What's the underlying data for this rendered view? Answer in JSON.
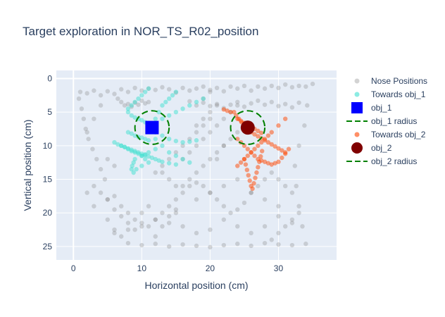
{
  "chart_data": {
    "type": "scatter",
    "title": "Target exploration in NOR_TS_R02_position",
    "xlabel": "Horizontal position (cm)",
    "ylabel": "Vertical position (cm)",
    "xlim": [
      -2.5,
      38.5
    ],
    "ylim": [
      27,
      -1.2
    ],
    "y_reversed": true,
    "x_ticks": [
      0,
      10,
      20,
      30
    ],
    "y_ticks": [
      0,
      5,
      10,
      15,
      20,
      25
    ],
    "grid": true,
    "legend_position": "right",
    "colors": {
      "plot_bg": "#e5ecf6",
      "grid": "#ffffff",
      "nose": "#808080",
      "towards_obj1": "#40e0d0",
      "towards_obj2": "#ff4500",
      "obj1": "#0000ff",
      "obj2": "#800000",
      "radius": "#008000"
    },
    "series": [
      {
        "name": "Nose Positions",
        "kind": "points",
        "color": "#808080",
        "x": [
          1,
          2,
          3,
          4,
          5,
          6,
          7,
          8,
          9,
          10,
          11,
          12,
          13,
          14,
          15,
          16,
          17,
          18,
          19,
          20,
          21,
          22,
          23,
          24,
          25,
          26,
          27,
          28,
          29,
          30,
          31,
          32,
          33,
          34,
          35,
          0.8,
          1.2,
          1.5,
          1.8,
          2.2,
          2.8,
          3.4,
          4,
          4.6,
          2,
          3,
          5,
          6,
          7,
          8,
          10,
          12,
          14,
          16,
          18,
          20,
          22,
          24,
          26,
          28,
          30,
          32,
          34,
          33.5,
          33,
          32.6,
          32.4,
          33,
          33.8,
          34.2,
          3,
          4,
          5,
          6,
          7,
          8,
          9,
          10,
          11,
          12,
          13,
          14,
          15,
          16,
          17,
          18,
          19,
          20,
          21,
          22,
          23,
          24,
          25,
          26,
          27,
          28,
          29,
          30,
          31,
          32,
          6.5,
          7,
          7.5,
          8,
          8.5,
          9,
          9.5,
          10,
          10.5,
          11,
          17,
          18,
          19,
          20,
          21,
          22,
          23,
          24,
          25,
          26,
          27,
          28,
          29,
          30,
          31,
          32,
          33,
          6,
          8,
          10,
          12,
          14,
          16,
          18,
          20,
          22,
          24,
          26,
          28,
          30,
          32,
          5,
          6,
          7,
          8,
          9,
          10,
          11,
          12,
          13,
          14,
          15,
          18,
          20,
          22,
          24,
          26,
          28,
          30,
          15,
          16,
          17,
          18,
          19,
          20,
          21,
          22,
          23,
          24,
          18,
          19,
          20,
          21,
          19,
          20,
          21,
          22,
          2,
          3,
          4,
          5,
          6,
          13,
          14,
          15,
          16,
          17,
          18,
          19,
          20,
          21,
          22,
          23,
          24,
          12,
          13,
          14,
          15,
          16,
          17,
          18,
          19,
          20,
          29,
          30,
          31,
          32,
          33
        ],
        "y": [
          2,
          2.2,
          1.8,
          2.5,
          1.9,
          2.3,
          1.6,
          2,
          1.4,
          1.8,
          1.5,
          1.7,
          1.3,
          1.6,
          2.1,
          1.4,
          1.8,
          1.5,
          1.2,
          1.7,
          1.4,
          1.9,
          1.2,
          1.5,
          1.1,
          1.8,
          1.2,
          1.5,
          1.1,
          1.4,
          0.9,
          1.3,
          1.1,
          1.2,
          0.8,
          3,
          4.5,
          6,
          7.5,
          9,
          10.5,
          12,
          13.5,
          15,
          17,
          19,
          21,
          22.5,
          23.5,
          24.5,
          24.8,
          24.6,
          25,
          24.7,
          24.9,
          25.1,
          24.8,
          24.6,
          24.9,
          24.5,
          24.7,
          24.8,
          24.6,
          22,
          19,
          16,
          13,
          10,
          7,
          4,
          16,
          17,
          18,
          17.5,
          19,
          20,
          21,
          21.5,
          22,
          21,
          20,
          19,
          18,
          17,
          16,
          15.5,
          16,
          17,
          18,
          19,
          20,
          19.5,
          18.5,
          17,
          16,
          15,
          14,
          15,
          16,
          17,
          3,
          3.5,
          4,
          3.8,
          4.2,
          3.6,
          3.9,
          3.3,
          3.7,
          3.5,
          3.4,
          4,
          3.6,
          4.1,
          3.8,
          4.4,
          3.9,
          3.5,
          4.2,
          3.7,
          3.3,
          3.9,
          3.5,
          4.1,
          3.8,
          4.3,
          3.6,
          23,
          22.5,
          22,
          23.5,
          21.5,
          22,
          23,
          22.5,
          21,
          22,
          23,
          22,
          20.5,
          21.5,
          18,
          19.5,
          20.5,
          21.5,
          22.5,
          20,
          19,
          21,
          22,
          20.5,
          19.5,
          18,
          17,
          16,
          15,
          17,
          18,
          19,
          20,
          16,
          15,
          14,
          13,
          12,
          11,
          10,
          9,
          8,
          7,
          6,
          5,
          4,
          3,
          2,
          12,
          10,
          8,
          6,
          4,
          12,
          13,
          14,
          15,
          16,
          12,
          11,
          10,
          9,
          8,
          7,
          6,
          5,
          4,
          14,
          13,
          12,
          11,
          10,
          9,
          8,
          7,
          6,
          24,
          23,
          22,
          21,
          20
        ]
      },
      {
        "name": "Towards obj_1",
        "kind": "points",
        "color": "#40e0d0",
        "x": [
          8,
          8.5,
          9,
          9.5,
          10,
          10.5,
          11,
          12,
          12.5,
          13,
          13.5,
          14,
          14.5,
          15,
          8,
          8.5,
          9,
          9.5,
          10,
          10.5,
          11,
          12,
          13,
          14,
          15,
          16,
          17,
          18,
          7,
          7.5,
          8,
          8.5,
          9,
          9.5,
          10,
          10.5,
          11,
          12,
          6,
          6.5,
          7,
          7.5,
          8,
          8.5,
          9,
          9.5,
          10,
          10.5,
          11,
          11.5,
          12,
          12.5,
          13,
          14,
          15,
          9,
          8.8,
          8.6,
          8.5,
          8.8,
          9.2,
          10,
          11,
          10.5,
          10,
          13,
          14,
          15,
          16,
          17,
          18,
          19,
          11,
          10.5,
          10,
          9.5,
          9,
          8.5,
          8,
          12,
          13,
          14,
          15,
          16,
          17
        ],
        "y": [
          5,
          5.5,
          5.8,
          6,
          6.2,
          6.5,
          6.8,
          6,
          5,
          4,
          3.5,
          3,
          2.5,
          2,
          8,
          8.2,
          8.5,
          8.7,
          8.8,
          9,
          9.2,
          8,
          8.5,
          9,
          9.3,
          9.5,
          9.4,
          9.2,
          10,
          10.2,
          10.5,
          10.8,
          11,
          11.2,
          11.5,
          11.3,
          11,
          10.5,
          9.5,
          9.8,
          10,
          10.2,
          10.4,
          10.6,
          10.8,
          11,
          11.2,
          11.4,
          11.6,
          11.8,
          12,
          12.2,
          12.4,
          12.6,
          12.8,
          12,
          12.5,
          13,
          13.5,
          14,
          13.5,
          13,
          12.5,
          12,
          11.5,
          6,
          5.5,
          5,
          4.5,
          4,
          3.5,
          3,
          1.5,
          2,
          2.5,
          3,
          3.5,
          4,
          4.5,
          9,
          10,
          11,
          11.5,
          12,
          12.5
        ]
      },
      {
        "name": "Towards obj_2",
        "kind": "points",
        "color": "#ff4500",
        "x": [
          24,
          24.5,
          25,
          25.5,
          26,
          26.5,
          27,
          27.5,
          28,
          28.5,
          29,
          29.5,
          30,
          30.5,
          31,
          31.5,
          26,
          26.5,
          27,
          27.5,
          28,
          28.5,
          29,
          29.5,
          30,
          30.5,
          31,
          25,
          25.2,
          25.4,
          25.6,
          25.8,
          26,
          26.2,
          26.4,
          26.6,
          26.8,
          27,
          27.2,
          27.4,
          27.6,
          24,
          24.5,
          25,
          25.5,
          26,
          26.5,
          27,
          27.5,
          23.5,
          23.8,
          24.2,
          24.6,
          25,
          31,
          30,
          29,
          28.5,
          28,
          27.5,
          27,
          26.5,
          26,
          25.5,
          25,
          24.5,
          24,
          23,
          22.5,
          22
        ],
        "y": [
          9,
          9.5,
          10,
          10.5,
          11,
          11.5,
          12,
          12.2,
          12.4,
          12.6,
          12.8,
          12.6,
          12.4,
          11.8,
          11.2,
          10.5,
          8,
          8.3,
          8.6,
          8.9,
          9.2,
          9.5,
          9.8,
          10.1,
          10.4,
          10.7,
          11,
          12,
          12.8,
          13.6,
          14.4,
          15.2,
          16,
          16.4,
          15.6,
          14.8,
          14,
          13.2,
          12.4,
          11.6,
          10.8,
          6,
          6.3,
          6.6,
          6.9,
          7.2,
          7.5,
          7.8,
          8.1,
          5,
          5.5,
          6,
          6.5,
          7,
          6,
          7,
          8,
          8.5,
          9,
          9.5,
          10,
          10.5,
          11,
          11.5,
          12,
          12.5,
          13,
          5,
          4.8,
          4.6
        ]
      }
    ],
    "objects": [
      {
        "name": "obj_1",
        "x": 11.5,
        "y": 7.3,
        "color": "#0000ff",
        "shape": "square"
      },
      {
        "name": "obj_2",
        "x": 25.5,
        "y": 7.3,
        "color": "#800000",
        "shape": "circle"
      }
    ],
    "radii": [
      {
        "name": "obj_1 radius",
        "cx": 11.5,
        "cy": 7.3,
        "r": 2.5,
        "color": "#008000",
        "dash": "dashed"
      },
      {
        "name": "obj_2 radius",
        "cx": 25.5,
        "cy": 7.3,
        "r": 2.5,
        "color": "#008000",
        "dash": "dashed"
      }
    ],
    "legend": [
      {
        "label": "Nose Positions",
        "symbol": "dot",
        "color": "#808080"
      },
      {
        "label": "Towards obj_1",
        "symbol": "dot",
        "color": "#40e0d0"
      },
      {
        "label": "obj_1",
        "symbol": "square",
        "color": "#0000ff"
      },
      {
        "label": "obj_1 radius",
        "symbol": "dash",
        "color": "#008000"
      },
      {
        "label": "Towards obj_2",
        "symbol": "dot",
        "color": "#ff4500"
      },
      {
        "label": "obj_2",
        "symbol": "circle",
        "color": "#800000"
      },
      {
        "label": "obj_2 radius",
        "symbol": "dash",
        "color": "#008000"
      }
    ]
  }
}
